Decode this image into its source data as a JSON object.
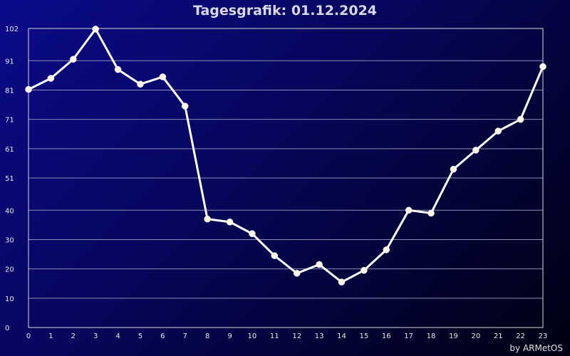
{
  "chart_data": {
    "type": "line",
    "title": "Tagesgrafik: 01.12.2024",
    "x": [
      0,
      1,
      2,
      3,
      4,
      5,
      6,
      7,
      8,
      9,
      10,
      11,
      12,
      13,
      14,
      15,
      16,
      17,
      18,
      19,
      20,
      21,
      22,
      23
    ],
    "x_tick_labels": [
      "0",
      "1",
      "2",
      "3",
      "4",
      "5",
      "6",
      "7",
      "8",
      "9",
      "10",
      "11",
      "12",
      "13",
      "14",
      "15",
      "16",
      "17",
      "18",
      "19",
      "20",
      "21",
      "22",
      "23"
    ],
    "y_tick_values": [
      0,
      10,
      20,
      30,
      40,
      51,
      61,
      71,
      81,
      91,
      102
    ],
    "y_tick_labels": [
      "0",
      "10",
      "20",
      "30",
      "40",
      "51",
      "61",
      "71",
      "81",
      "91",
      "102"
    ],
    "ylim": [
      0,
      102
    ],
    "xlim": [
      0,
      23
    ],
    "grid": "horizontal",
    "series": [
      {
        "values": [
          81.2,
          85,
          91.5,
          101.8,
          88,
          83,
          85.5,
          75.5,
          37,
          36,
          32,
          24.5,
          18.5,
          21.5,
          15.5,
          19.5,
          26.5,
          40,
          39,
          54,
          60.5,
          67,
          71,
          89
        ]
      }
    ],
    "colors": {
      "line": "#ffffff",
      "marker": "#fffbe8",
      "grid": "#8a8ab8",
      "frame": "#d8d8d8"
    }
  },
  "footer": {
    "credit": "by ARMetOS"
  }
}
